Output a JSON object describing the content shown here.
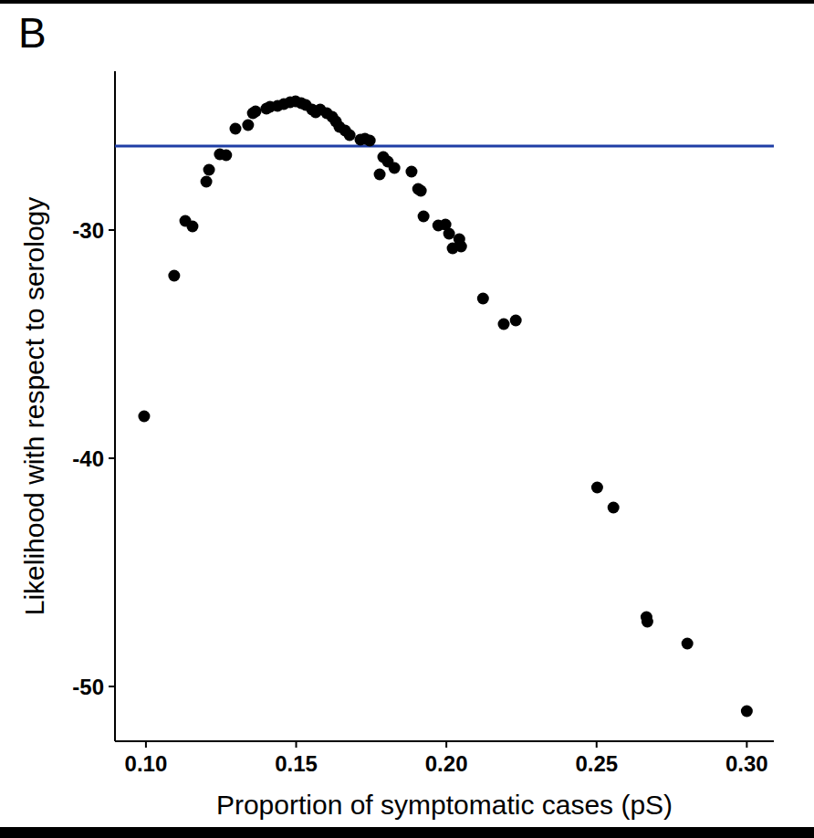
{
  "chart_data": {
    "type": "scatter",
    "panel_label": "B",
    "x_label": "Proportion of symptomatic cases (pS)",
    "y_label": "Likelihood with respect to serology",
    "xlim": [
      0.0897,
      0.309
    ],
    "ylim": [
      -52.4,
      -23.04
    ],
    "xticks": [
      {
        "value": 0.1,
        "label": "0.10"
      },
      0.15,
      {
        "value": 0.2,
        "label": "0.20"
      },
      0.25,
      {
        "value": 0.3,
        "label": "0.30"
      }
    ],
    "yticks": [
      -50,
      -40,
      -30
    ],
    "grid": false,
    "color": "#000000",
    "marker": "circle",
    "reference_line": {
      "value": -26.32,
      "color": "#1f3ea6"
    },
    "x": [
      0.0994,
      0.1094,
      0.1131,
      0.1155,
      0.1201,
      0.121,
      0.1246,
      0.1267,
      0.1298,
      0.134,
      0.1356,
      0.1365,
      0.1401,
      0.1413,
      0.1438,
      0.1459,
      0.148,
      0.1498,
      0.1517,
      0.1532,
      0.1553,
      0.1565,
      0.158,
      0.1602,
      0.162,
      0.1632,
      0.1644,
      0.1663,
      0.1678,
      0.1714,
      0.1729,
      0.1745,
      0.1778,
      0.179,
      0.1805,
      0.1827,
      0.1884,
      0.1906,
      0.1915,
      0.1924,
      0.1973,
      0.1997,
      0.2009,
      0.2021,
      0.2043,
      0.2049,
      0.2122,
      0.2191,
      0.2231,
      0.2502,
      0.2556,
      0.2666,
      0.2669,
      0.2802,
      0.3
    ],
    "values": [
      -38.16,
      -32.0,
      -29.6,
      -29.84,
      -27.88,
      -27.36,
      -26.68,
      -26.72,
      -25.56,
      -25.4,
      -24.88,
      -24.8,
      -24.68,
      -24.6,
      -24.56,
      -24.48,
      -24.4,
      -24.36,
      -24.44,
      -24.52,
      -24.72,
      -24.84,
      -24.72,
      -24.88,
      -25.04,
      -25.24,
      -25.48,
      -25.64,
      -25.84,
      -26.04,
      -26.0,
      -26.08,
      -27.56,
      -26.8,
      -27.0,
      -27.28,
      -27.44,
      -28.2,
      -28.28,
      -29.4,
      -29.8,
      -29.76,
      -30.16,
      -30.8,
      -30.4,
      -30.72,
      -33.0,
      -34.12,
      -33.96,
      -41.28,
      -42.16,
      -46.96,
      -47.16,
      -48.12,
      -51.08
    ]
  }
}
